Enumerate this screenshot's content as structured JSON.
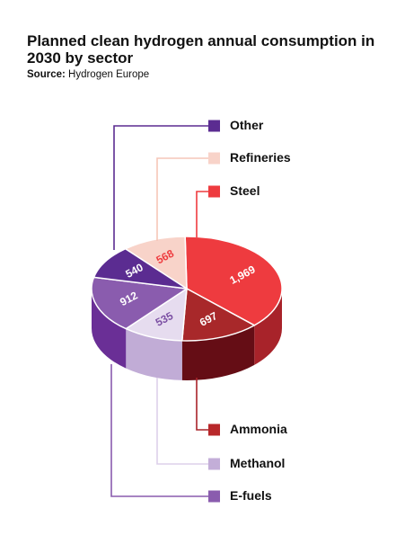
{
  "header": {
    "title": "Planned clean hydrogen annual consumption in 2030 by sector",
    "source_label": "Source:",
    "source_value": "Hydrogen Europe"
  },
  "chart_data": {
    "type": "pie",
    "title": "Planned clean hydrogen annual consumption in 2030 by sector",
    "subtitle": "Source: Hydrogen Europe",
    "slices": [
      {
        "label": "Steel",
        "value": 1969,
        "value_label": "1,969",
        "color": "#ee3b3f",
        "side_color": "#a8232a",
        "text_color": "#ffffff"
      },
      {
        "label": "Ammonia",
        "value": 697,
        "value_label": "697",
        "color": "#a8282a",
        "side_color": "#650d15",
        "text_color": "#ffffff"
      },
      {
        "label": "Methanol",
        "value": 535,
        "value_label": "535",
        "color": "#e6dcef",
        "side_color": "#c1acd6",
        "text_color": "#7b4fa3"
      },
      {
        "label": "E-fuels",
        "value": 912,
        "value_label": "912",
        "color": "#8a5cae",
        "side_color": "#6a2f96",
        "text_color": "#ffffff"
      },
      {
        "label": "Other",
        "value": 540,
        "value_label": "540",
        "color": "#5b2c91",
        "side_color": "#42166f",
        "text_color": "#ffffff"
      },
      {
        "label": "Refineries",
        "value": 568,
        "value_label": "568",
        "color": "#f8d3c9",
        "side_color": "#e9b3a5",
        "text_color": "#ee3b3f"
      }
    ],
    "legend": [
      {
        "label": "Other",
        "color": "#5b2c91",
        "line_color": "#5b2c91"
      },
      {
        "label": "Refineries",
        "color": "#f8d3c9",
        "line_color": "#f6c6b8"
      },
      {
        "label": "Steel",
        "color": "#ee3b3f",
        "line_color": "#ee3b3f"
      },
      {
        "label": "Ammonia",
        "color": "#b8282a",
        "line_color": "#a8232a"
      },
      {
        "label": "Methanol",
        "color": "#c3aed8",
        "line_color": "#ddd0ea"
      },
      {
        "label": "E-fuels",
        "color": "#8a5cae",
        "line_color": "#8a5cae"
      }
    ]
  }
}
